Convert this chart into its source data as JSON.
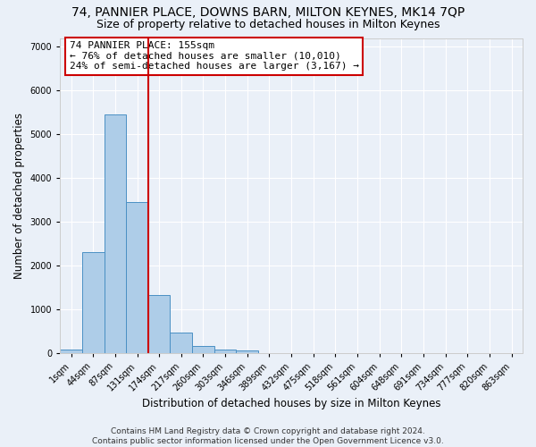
{
  "title": "74, PANNIER PLACE, DOWNS BARN, MILTON KEYNES, MK14 7QP",
  "subtitle": "Size of property relative to detached houses in Milton Keynes",
  "xlabel": "Distribution of detached houses by size in Milton Keynes",
  "ylabel": "Number of detached properties",
  "footer_line1": "Contains HM Land Registry data © Crown copyright and database right 2024.",
  "footer_line2": "Contains public sector information licensed under the Open Government Licence v3.0.",
  "categories": [
    "1sqm",
    "44sqm",
    "87sqm",
    "131sqm",
    "174sqm",
    "217sqm",
    "260sqm",
    "303sqm",
    "346sqm",
    "389sqm",
    "432sqm",
    "475sqm",
    "518sqm",
    "561sqm",
    "604sqm",
    "648sqm",
    "691sqm",
    "734sqm",
    "777sqm",
    "820sqm",
    "863sqm"
  ],
  "values": [
    75,
    2300,
    5450,
    3450,
    1320,
    460,
    155,
    80,
    50,
    0,
    0,
    0,
    0,
    0,
    0,
    0,
    0,
    0,
    0,
    0,
    0
  ],
  "bar_color": "#aecde8",
  "bar_edge_color": "#4a90c4",
  "vline_color": "#cc0000",
  "annotation_text": "74 PANNIER PLACE: 155sqm\n← 76% of detached houses are smaller (10,010)\n24% of semi-detached houses are larger (3,167) →",
  "annotation_box_color": "#ffffff",
  "annotation_box_edge_color": "#cc0000",
  "ylim": [
    0,
    7200
  ],
  "yticks": [
    0,
    1000,
    2000,
    3000,
    4000,
    5000,
    6000,
    7000
  ],
  "background_color": "#eaf0f8",
  "grid_color": "#ffffff",
  "title_fontsize": 10,
  "subtitle_fontsize": 9,
  "axis_label_fontsize": 8.5,
  "tick_fontsize": 7,
  "annotation_fontsize": 8,
  "footer_fontsize": 6.5
}
